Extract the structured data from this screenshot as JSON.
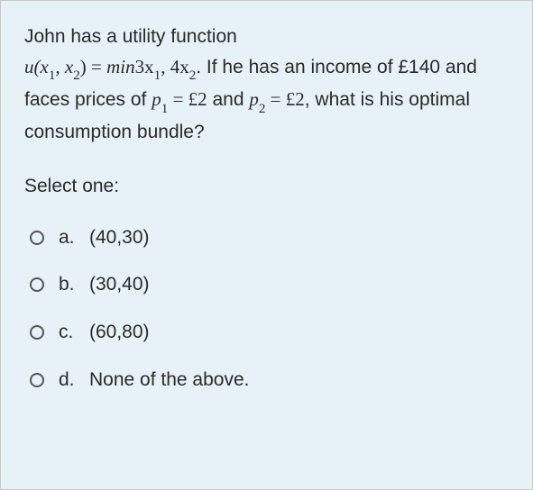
{
  "question": {
    "intro_text": "John has a utility function",
    "expr_u_open": "u(x",
    "expr_sub1": "1",
    "expr_comma_x": ", x",
    "expr_sub2": "2",
    "expr_close_eq": ") = ",
    "expr_min": "min",
    "expr_3x": "3x",
    "expr_sub1b": "1",
    "expr_comma": ", ",
    "expr_4x": "4x",
    "expr_sub2b": "2",
    "after_expr": ". If he has an income of £140 and faces prices of ",
    "p1": "p",
    "p1_sub": "1",
    "p1_eq": " = £2",
    "mid_text": " and ",
    "p2": "p",
    "p2_sub": "2",
    "p2_eq": " = £2",
    "tail_text": ", what is his optimal consumption bundle?"
  },
  "prompt": "Select one:",
  "options": [
    {
      "letter": "a.",
      "text": "(40,30)"
    },
    {
      "letter": "b.",
      "text": "(30,40)"
    },
    {
      "letter": "c.",
      "text": "(60,80)"
    },
    {
      "letter": "d.",
      "text": "None of the above."
    }
  ],
  "colors": {
    "panel_bg": "#e6f2f8",
    "border": "#c8c8c8",
    "text": "#2a2a2a"
  }
}
